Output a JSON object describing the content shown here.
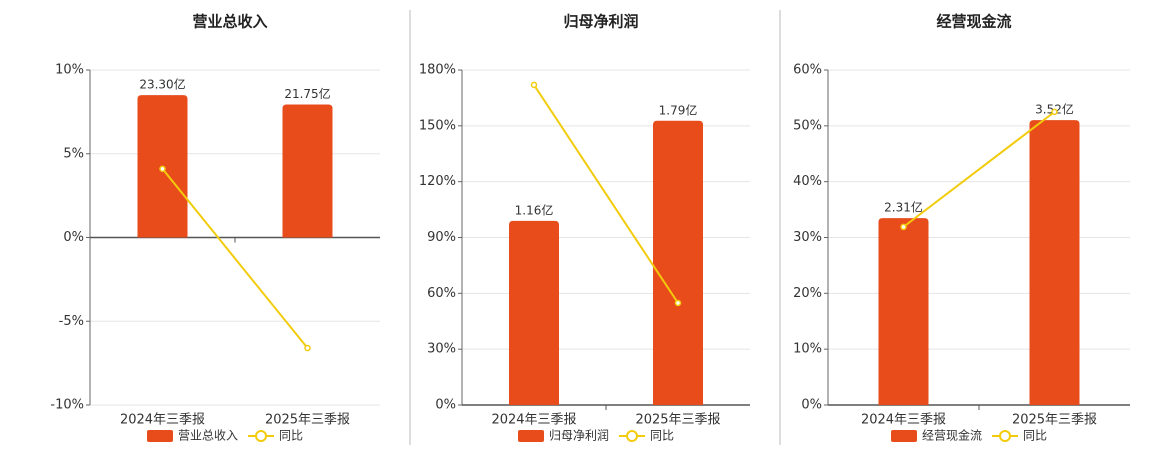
{
  "chart_data": [
    {
      "type": "bar-line",
      "title": "营业总收入",
      "categories": [
        "2024年三季报",
        "2025年三季报"
      ],
      "series": [
        {
          "name": "营业总收入",
          "color": "#e84c1b",
          "values": [
            23.3,
            21.75
          ],
          "value_labels": [
            "23.30亿",
            "21.75亿"
          ]
        },
        {
          "name": "同比",
          "color": "#f2cc0c",
          "values": [
            4.1,
            -6.6
          ],
          "axis": "y2"
        }
      ],
      "ylim": [
        -27.4,
        27.4
      ],
      "y2lim": [
        -10,
        10
      ],
      "y2ticks": [
        {
          "value": -10,
          "label": "-10%"
        },
        {
          "value": -5,
          "label": "-5%"
        },
        {
          "value": 0,
          "label": "0%"
        },
        {
          "value": 5,
          "label": "5%"
        },
        {
          "value": 10,
          "label": "10%"
        }
      ],
      "grid": true
    },
    {
      "type": "bar-line",
      "title": "归母净利润",
      "categories": [
        "2024年三季报",
        "2025年三季报"
      ],
      "series": [
        {
          "name": "归母净利润",
          "color": "#e84c1b",
          "values": [
            1.16,
            1.79
          ],
          "value_labels": [
            "1.16亿",
            "1.79亿"
          ]
        },
        {
          "name": "同比",
          "color": "#f2cc0c",
          "values": [
            172,
            54.8
          ],
          "axis": "y2"
        }
      ],
      "ylim": [
        0,
        2.11
      ],
      "y2lim": [
        0,
        180
      ],
      "y2ticks": [
        {
          "value": 0,
          "label": "0%"
        },
        {
          "value": 30,
          "label": "30%"
        },
        {
          "value": 60,
          "label": "60%"
        },
        {
          "value": 90,
          "label": "90%"
        },
        {
          "value": 120,
          "label": "120%"
        },
        {
          "value": 150,
          "label": "150%"
        },
        {
          "value": 180,
          "label": "180%"
        }
      ],
      "grid": true
    },
    {
      "type": "bar-line",
      "title": "经营现金流",
      "categories": [
        "2024年三季报",
        "2025年三季报"
      ],
      "series": [
        {
          "name": "经营现金流",
          "color": "#e84c1b",
          "values": [
            2.31,
            3.52
          ],
          "value_labels": [
            "2.31亿",
            "3.52亿"
          ]
        },
        {
          "name": "同比",
          "color": "#f2cc0c",
          "values": [
            31.9,
            52.5
          ],
          "axis": "y2"
        }
      ],
      "ylim": [
        0,
        4.14
      ],
      "y2lim": [
        0,
        60
      ],
      "y2ticks": [
        {
          "value": 0,
          "label": "0%"
        },
        {
          "value": 10,
          "label": "10%"
        },
        {
          "value": 20,
          "label": "20%"
        },
        {
          "value": 30,
          "label": "30%"
        },
        {
          "value": 40,
          "label": "40%"
        },
        {
          "value": 50,
          "label": "50%"
        },
        {
          "value": 60,
          "label": "60%"
        }
      ],
      "grid": true
    }
  ]
}
